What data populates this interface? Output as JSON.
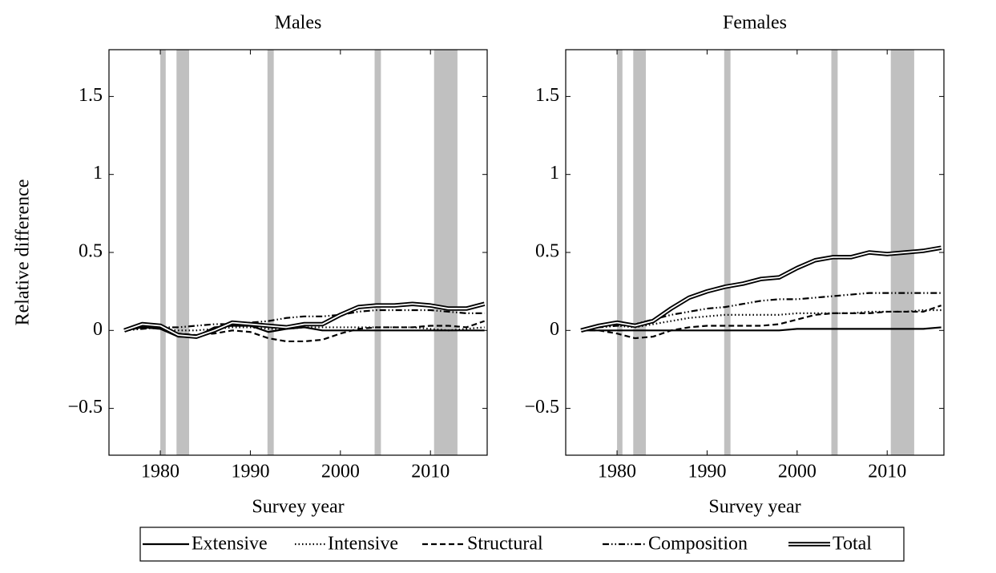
{
  "chart_data": [
    {
      "type": "line",
      "title": "Males",
      "xlabel": "Survey year",
      "ylabel": "Relative difference",
      "x": [
        1976,
        1978,
        1980,
        1982,
        1984,
        1986,
        1988,
        1990,
        1992,
        1994,
        1996,
        1998,
        2000,
        2002,
        2004,
        2006,
        2008,
        2010,
        2012,
        2014,
        2016
      ],
      "xlim": [
        1974.3,
        2016.3
      ],
      "xticks": [
        1980,
        1990,
        2000,
        2010
      ],
      "ylim": [
        -0.8,
        1.8
      ],
      "yticks": [
        {
          "value": -0.5,
          "label": "−0.5"
        },
        0,
        0.5,
        1,
        1.5
      ],
      "shaded_spans": [
        [
          1980.0,
          1980.6
        ],
        [
          1981.8,
          1983.2
        ],
        [
          1991.9,
          1992.6
        ],
        [
          2003.8,
          2004.5
        ],
        [
          2010.4,
          2013.0
        ]
      ],
      "shade_color": "#c0c0c0",
      "series": [
        {
          "name": "Extensive",
          "color": "#000000",
          "line_style": "solid",
          "values": [
            0,
            0.02,
            0.01,
            -0.04,
            -0.04,
            0.02,
            0.03,
            0.03,
            -0.01,
            0.01,
            0.02,
            0,
            0,
            0,
            0,
            0,
            0,
            0,
            0,
            0,
            0
          ]
        },
        {
          "name": "Intensive",
          "color": "#000000",
          "line_style": "dotted",
          "values": [
            0,
            0.02,
            0.01,
            0,
            0,
            0.01,
            0.02,
            0.02,
            0.01,
            0.01,
            0.02,
            0.02,
            0.02,
            0.02,
            0.02,
            0.02,
            0.02,
            0.01,
            0,
            0.01,
            0.02
          ]
        },
        {
          "name": "Structural",
          "color": "#000000",
          "line_style": "dashed",
          "values": [
            0,
            0.02,
            0.02,
            -0.02,
            -0.03,
            -0.02,
            0,
            -0.01,
            -0.05,
            -0.07,
            -0.07,
            -0.06,
            -0.02,
            0.01,
            0.02,
            0.02,
            0.02,
            0.03,
            0.03,
            0.02,
            0.06
          ]
        },
        {
          "name": "Composition",
          "color": "#000000",
          "line_style": "dashdotdotted",
          "values": [
            0,
            0.01,
            0.02,
            0.02,
            0.03,
            0.04,
            0.04,
            0.05,
            0.06,
            0.08,
            0.09,
            0.09,
            0.1,
            0.12,
            0.13,
            0.13,
            0.13,
            0.13,
            0.12,
            0.11,
            0.11
          ]
        },
        {
          "name": "Total",
          "color": "#000000",
          "line_style": "double",
          "values": [
            0,
            0.04,
            0.03,
            -0.03,
            -0.04,
            0,
            0.05,
            0.04,
            0.03,
            0.02,
            0.04,
            0.04,
            0.1,
            0.15,
            0.16,
            0.16,
            0.17,
            0.16,
            0.14,
            0.14,
            0.17
          ]
        }
      ]
    },
    {
      "type": "line",
      "title": "Females",
      "xlabel": "Survey year",
      "x": [
        1976,
        1978,
        1980,
        1982,
        1984,
        1986,
        1988,
        1990,
        1992,
        1994,
        1996,
        1998,
        2000,
        2002,
        2004,
        2006,
        2008,
        2010,
        2012,
        2014,
        2016
      ],
      "xlim": [
        1974.3,
        2016.3
      ],
      "xticks": [
        1980,
        1990,
        2000,
        2010
      ],
      "ylim": [
        -0.8,
        1.8
      ],
      "yticks": [
        {
          "value": -0.5,
          "label": "−0.5"
        },
        0,
        0.5,
        1,
        1.5
      ],
      "shaded_spans": [
        [
          1980.0,
          1980.6
        ],
        [
          1981.8,
          1983.2
        ],
        [
          1991.9,
          1992.6
        ],
        [
          2003.8,
          2004.5
        ],
        [
          2010.4,
          2013.0
        ]
      ],
      "shade_color": "#c0c0c0",
      "series": [
        {
          "color": "#000000",
          "line_style": "solid",
          "values": [
            0,
            0,
            0,
            0,
            0,
            0,
            0,
            0,
            0,
            0,
            0,
            0,
            0.01,
            0.01,
            0.01,
            0.01,
            0.01,
            0.01,
            0.01,
            0.01,
            0.02
          ]
        },
        {
          "color": "#000000",
          "line_style": "dotted",
          "values": [
            0,
            0.02,
            0.03,
            0.02,
            0.04,
            0.06,
            0.08,
            0.09,
            0.1,
            0.1,
            0.1,
            0.1,
            0.11,
            0.11,
            0.11,
            0.11,
            0.12,
            0.12,
            0.12,
            0.13,
            0.13
          ]
        },
        {
          "color": "#000000",
          "line_style": "dashed",
          "values": [
            0,
            0,
            -0.02,
            -0.05,
            -0.04,
            0,
            0.02,
            0.03,
            0.03,
            0.03,
            0.03,
            0.04,
            0.07,
            0.1,
            0.11,
            0.11,
            0.11,
            0.12,
            0.12,
            0.12,
            0.16
          ]
        },
        {
          "color": "#000000",
          "line_style": "dashdotdotted",
          "values": [
            0,
            0.02,
            0.03,
            0.04,
            0.07,
            0.1,
            0.12,
            0.14,
            0.15,
            0.17,
            0.19,
            0.2,
            0.2,
            0.21,
            0.22,
            0.23,
            0.24,
            0.24,
            0.24,
            0.24,
            0.24
          ]
        },
        {
          "color": "#000000",
          "line_style": "double",
          "values": [
            0,
            0.03,
            0.05,
            0.03,
            0.06,
            0.14,
            0.21,
            0.25,
            0.28,
            0.3,
            0.33,
            0.34,
            0.4,
            0.45,
            0.47,
            0.47,
            0.5,
            0.49,
            0.5,
            0.51,
            0.53
          ]
        }
      ]
    }
  ]
}
